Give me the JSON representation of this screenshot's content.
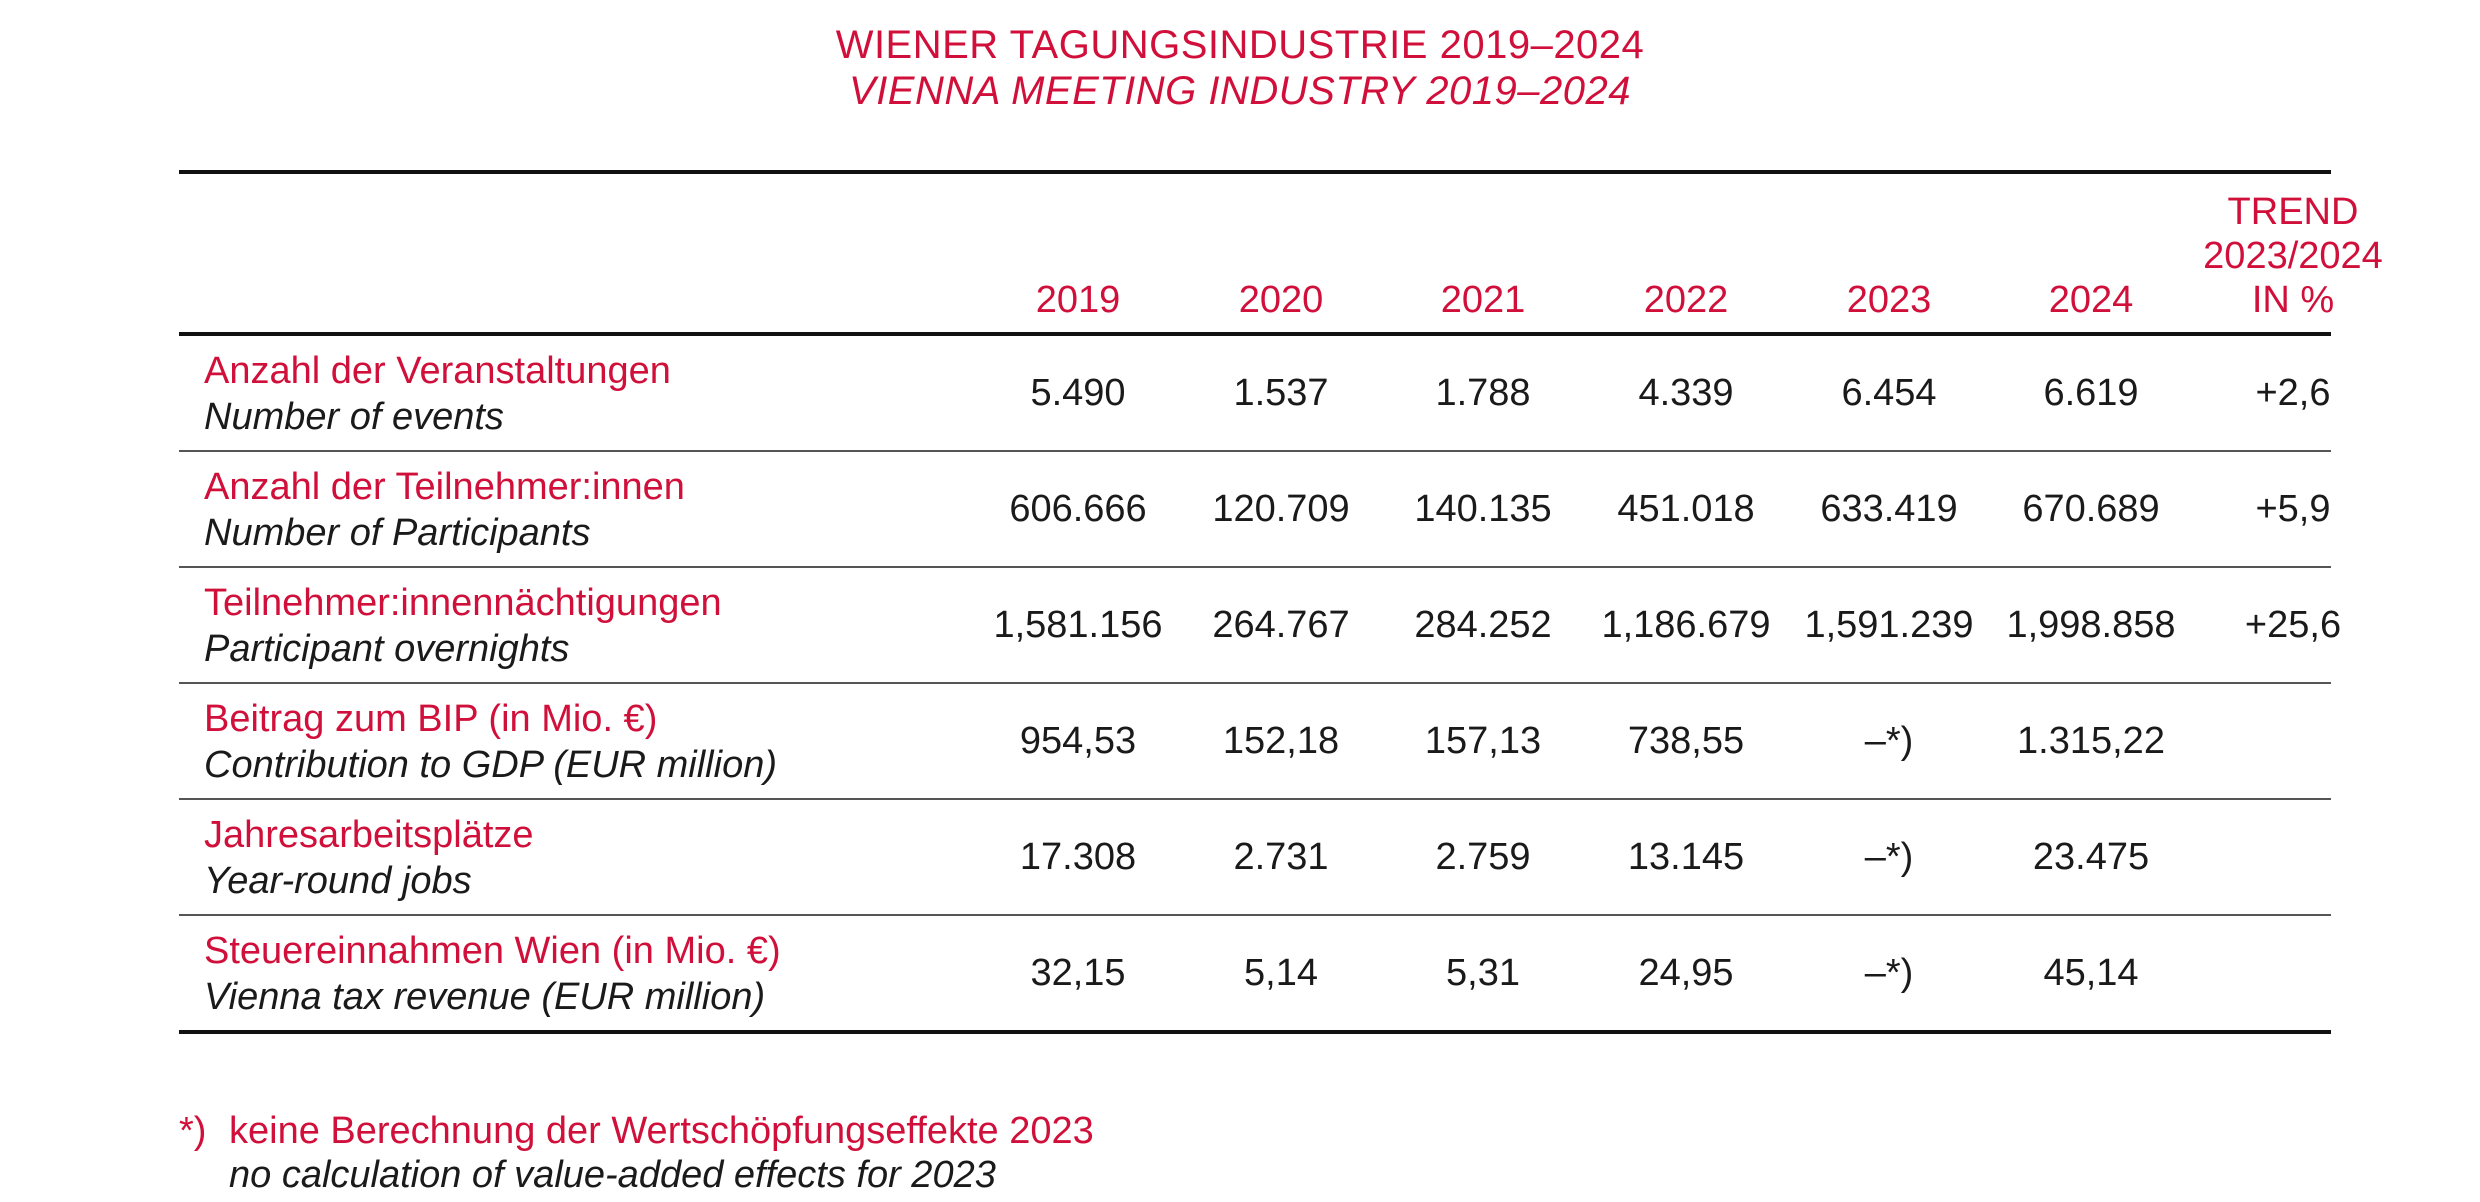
{
  "title": {
    "de": "WIENER TAGUNGSINDUSTRIE 2019–2024",
    "en": "VIENNA MEETING INDUSTRY 2019–2024"
  },
  "table": {
    "columns": [
      "2019",
      "2020",
      "2021",
      "2022",
      "2023",
      "2024"
    ],
    "trend_header": [
      "TREND",
      "2023/2024",
      "IN %"
    ],
    "rows": [
      {
        "label_de": "Anzahl der Veranstaltungen",
        "label_en": "Number of events",
        "values": [
          "5.490",
          "1.537",
          "1.788",
          "4.339",
          "6.454",
          "6.619"
        ],
        "trend": "+2,6"
      },
      {
        "label_de": "Anzahl der Teilnehmer:innen",
        "label_en": "Number of Participants",
        "values": [
          "606.666",
          "120.709",
          "140.135",
          "451.018",
          "633.419",
          "670.689"
        ],
        "trend": "+5,9"
      },
      {
        "label_de": "Teilnehmer:innennächtigungen",
        "label_en": "Participant overnights",
        "values": [
          "1,581.156",
          "264.767",
          "284.252",
          "1,186.679",
          "1,591.239",
          "1,998.858"
        ],
        "trend": "+25,6"
      },
      {
        "label_de": "Beitrag zum BIP (in Mio. €)",
        "label_en": "Contribution to GDP (EUR million)",
        "values": [
          "954,53",
          "152,18",
          "157,13",
          "738,55",
          "–*)",
          "1.315,22"
        ],
        "trend": ""
      },
      {
        "label_de": "Jahresarbeitsplätze",
        "label_en": "Year-round jobs",
        "values": [
          "17.308",
          "2.731",
          "2.759",
          "13.145",
          "–*)",
          "23.475"
        ],
        "trend": ""
      },
      {
        "label_de": "Steuereinnahmen Wien (in Mio. €)",
        "label_en": "Vienna tax revenue (EUR million)",
        "values": [
          "32,15",
          "5,14",
          "5,31",
          "24,95",
          "–*)",
          "45,14"
        ],
        "trend": ""
      }
    ]
  },
  "footnote": {
    "mark": "*)",
    "de": "keine Berechnung der Wertschöpfungseffekte 2023",
    "en": "no calculation of value-added effects for 2023"
  },
  "colors": {
    "accent": "#d0103a",
    "text": "#1a1a1a"
  }
}
